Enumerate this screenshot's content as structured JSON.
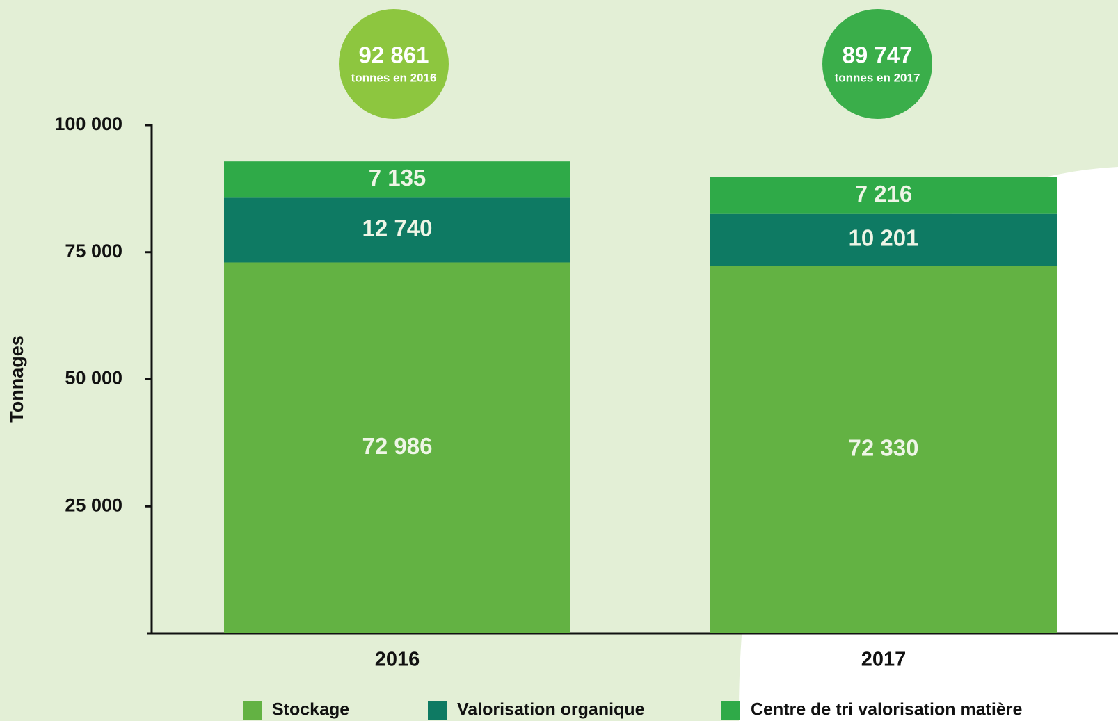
{
  "chart_data": {
    "type": "stacked-bar",
    "y_axis_label": "Tonnages",
    "categories": [
      "2016",
      "2017"
    ],
    "series": [
      {
        "name": "Stockage",
        "color": "#63b243",
        "values": [
          72986,
          72330
        ],
        "value_labels": [
          "72 986",
          "72 330"
        ]
      },
      {
        "name": "Valorisation organique",
        "color": "#0e7a63",
        "values": [
          12740,
          10201
        ],
        "value_labels": [
          "12 740",
          "10 201"
        ]
      },
      {
        "name": "Centre de tri valorisation matière",
        "color": "#2faa48",
        "values": [
          7135,
          7216
        ],
        "value_labels": [
          "7 135",
          "7 216"
        ]
      }
    ],
    "annotations": [
      {
        "value": 92861,
        "label": "92 861",
        "text": "tonnes en 2016",
        "color": "#8dc63f"
      },
      {
        "value": 89747,
        "label": "89 747",
        "text": "tonnes en 2017",
        "color": "#3aae4a"
      }
    ],
    "ylim": [
      0,
      100000
    ],
    "yticks": [
      {
        "value": 25000,
        "label": "25 000"
      },
      {
        "value": 50000,
        "label": "50 000"
      },
      {
        "value": 75000,
        "label": "75 000"
      },
      {
        "value": 100000,
        "label": "100 000"
      }
    ],
    "grid": false
  }
}
